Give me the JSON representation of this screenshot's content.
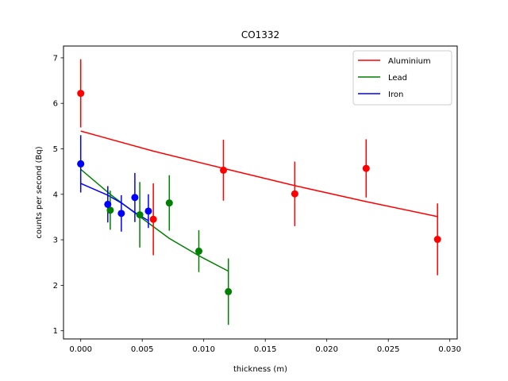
{
  "chart_data": {
    "type": "scatter",
    "title": "CO1332",
    "xlabel": "thickness (m)",
    "ylabel": "counts per second (Bq)",
    "xlim": [
      -0.0014,
      0.0306
    ],
    "ylim": [
      0.82,
      7.26
    ],
    "xticks": [
      0.0,
      0.005,
      0.01,
      0.015,
      0.02,
      0.025,
      0.03
    ],
    "xtick_labels": [
      "0.000",
      "0.005",
      "0.010",
      "0.015",
      "0.020",
      "0.025",
      "0.030"
    ],
    "yticks": [
      1,
      2,
      3,
      4,
      5,
      6,
      7
    ],
    "ytick_labels": [
      "1",
      "2",
      "3",
      "4",
      "5",
      "6",
      "7"
    ],
    "grid": false,
    "legend_position": "top-right",
    "series": [
      {
        "name": "Aluminium",
        "color": "#ff0000",
        "points": [
          {
            "x": 0.0,
            "y": 6.22,
            "err": 0.75
          },
          {
            "x": 0.0059,
            "y": 3.45,
            "err": 0.79
          },
          {
            "x": 0.0116,
            "y": 4.53,
            "err": 0.67
          },
          {
            "x": 0.0174,
            "y": 4.01,
            "err": 0.71
          },
          {
            "x": 0.0232,
            "y": 4.57,
            "err": 0.64
          },
          {
            "x": 0.029,
            "y": 3.01,
            "err": 0.79
          }
        ],
        "fit": [
          {
            "x": 0.0,
            "y": 5.39
          },
          {
            "x": 0.0059,
            "y": 4.95
          },
          {
            "x": 0.0116,
            "y": 4.57
          },
          {
            "x": 0.0174,
            "y": 4.19
          },
          {
            "x": 0.0232,
            "y": 3.84
          },
          {
            "x": 0.029,
            "y": 3.51
          }
        ]
      },
      {
        "name": "Lead",
        "color": "#008000",
        "points": [
          {
            "x": 0.0,
            "y": 4.67,
            "err": 0.0
          },
          {
            "x": 0.0024,
            "y": 3.65,
            "err": 0.43
          },
          {
            "x": 0.0048,
            "y": 3.55,
            "err": 0.72
          },
          {
            "x": 0.0072,
            "y": 3.81,
            "err": 0.61
          },
          {
            "x": 0.0096,
            "y": 2.75,
            "err": 0.46
          },
          {
            "x": 0.012,
            "y": 1.86,
            "err": 0.73
          }
        ],
        "fit": [
          {
            "x": 0.0,
            "y": 4.55
          },
          {
            "x": 0.0024,
            "y": 4.0
          },
          {
            "x": 0.0048,
            "y": 3.51
          },
          {
            "x": 0.0072,
            "y": 3.03
          },
          {
            "x": 0.0096,
            "y": 2.65
          },
          {
            "x": 0.012,
            "y": 2.31
          }
        ]
      },
      {
        "name": "Iron",
        "color": "#0000ff",
        "points": [
          {
            "x": 0.0,
            "y": 4.67,
            "err": 0.63
          },
          {
            "x": 0.0022,
            "y": 3.78,
            "err": 0.4
          },
          {
            "x": 0.0033,
            "y": 3.58,
            "err": 0.4
          },
          {
            "x": 0.0044,
            "y": 3.93,
            "err": 0.54
          },
          {
            "x": 0.0055,
            "y": 3.63,
            "err": 0.37
          }
        ],
        "fit": [
          {
            "x": 0.0,
            "y": 4.24
          },
          {
            "x": 0.0022,
            "y": 3.98
          },
          {
            "x": 0.0033,
            "y": 3.81
          },
          {
            "x": 0.0044,
            "y": 3.6
          },
          {
            "x": 0.0055,
            "y": 3.42
          }
        ]
      }
    ]
  }
}
